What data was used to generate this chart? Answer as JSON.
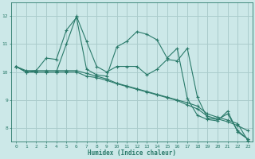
{
  "background_color": "#cce8e8",
  "grid_color": "#aacccc",
  "line_color": "#2a7a6a",
  "xlabel": "Humidex (Indice chaleur)",
  "xlim": [
    -0.5,
    23.5
  ],
  "ylim": [
    7.5,
    12.5
  ],
  "yticks": [
    8,
    9,
    10,
    11,
    12
  ],
  "xticks": [
    0,
    1,
    2,
    3,
    4,
    5,
    6,
    7,
    8,
    9,
    10,
    11,
    12,
    13,
    14,
    15,
    16,
    17,
    18,
    19,
    20,
    21,
    22,
    23
  ],
  "lines": [
    {
      "x": [
        0,
        1,
        2,
        3,
        4,
        5,
        6,
        7,
        8,
        9,
        10,
        11,
        12,
        13,
        14,
        15,
        16,
        17,
        18,
        19,
        20,
        21,
        22,
        23
      ],
      "y": [
        10.2,
        10.0,
        10.05,
        10.5,
        10.45,
        11.5,
        11.95,
        10.1,
        9.9,
        9.85,
        10.9,
        11.1,
        11.45,
        11.35,
        11.15,
        10.5,
        10.85,
        9.05,
        8.45,
        8.3,
        8.25,
        8.6,
        7.85,
        7.6
      ]
    },
    {
      "x": [
        0,
        1,
        2,
        3,
        4,
        5,
        6,
        7,
        8,
        9,
        10,
        11,
        12,
        13,
        14,
        15,
        16,
        17,
        18,
        19,
        20,
        21,
        22,
        23
      ],
      "y": [
        10.2,
        10.0,
        10.0,
        10.0,
        10.0,
        11.0,
        12.0,
        11.1,
        10.2,
        10.0,
        10.2,
        10.2,
        10.2,
        9.9,
        10.1,
        10.45,
        10.4,
        10.85,
        9.1,
        8.35,
        8.3,
        8.5,
        7.9,
        7.6
      ]
    },
    {
      "x": [
        0,
        1,
        2,
        3,
        4,
        5,
        6,
        7,
        8,
        9,
        10,
        11,
        12,
        13,
        14,
        15,
        16,
        17,
        18,
        19,
        20,
        21,
        22,
        23
      ],
      "y": [
        10.2,
        10.05,
        10.05,
        10.05,
        10.05,
        10.05,
        10.05,
        9.95,
        9.85,
        9.75,
        9.6,
        9.5,
        9.4,
        9.3,
        9.2,
        9.1,
        9.0,
        8.9,
        8.78,
        8.5,
        8.38,
        8.28,
        8.15,
        7.55
      ]
    },
    {
      "x": [
        0,
        1,
        2,
        3,
        4,
        5,
        6,
        7,
        8,
        9,
        10,
        11,
        12,
        13,
        14,
        15,
        16,
        17,
        18,
        19,
        20,
        21,
        22,
        23
      ],
      "y": [
        10.2,
        10.0,
        10.0,
        10.0,
        10.0,
        10.0,
        10.0,
        9.85,
        9.8,
        9.7,
        9.58,
        9.48,
        9.38,
        9.28,
        9.18,
        9.08,
        8.98,
        8.82,
        8.68,
        8.42,
        8.32,
        8.22,
        8.08,
        7.9
      ]
    }
  ]
}
